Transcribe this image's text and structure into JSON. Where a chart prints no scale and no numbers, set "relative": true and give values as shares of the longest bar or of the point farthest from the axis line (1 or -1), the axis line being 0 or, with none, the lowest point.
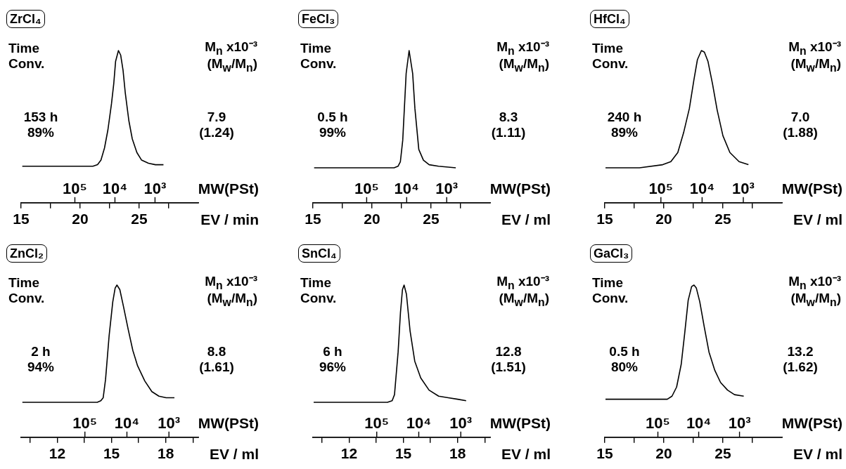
{
  "chart_data": [
    {
      "type": "line",
      "title": "ZrCl₄",
      "xlabel": "EV / min",
      "x2label": "MW(PSt)",
      "xlim": [
        15,
        30
      ],
      "xticks": [
        15,
        {
          "value": 17.5,
          "label": null
        },
        20,
        {
          "value": 22.5,
          "label": null
        },
        25,
        {
          "value": 27.5,
          "label": null
        }
      ],
      "log": "x2",
      "x2lim": [
        2200000,
        83
      ],
      "x2ticks": [
        {
          "value": 100000,
          "label": "10⁵"
        },
        {
          "value": 10000,
          "label": "10⁴"
        },
        {
          "value": 1000,
          "label": "10³"
        }
      ],
      "relative": true,
      "marker": "none",
      "color": "#000000",
      "x": [
        15.1,
        21.08,
        21.47,
        21.76,
        22.06,
        22.35,
        22.65,
        22.84,
        23.0,
        23.24,
        23.43,
        23.63,
        23.82,
        24.12,
        24.41,
        24.8,
        25.2,
        25.78,
        26.37,
        27.05
      ],
      "values": [
        0.24,
        0.24,
        0.25,
        0.28,
        0.36,
        0.48,
        0.65,
        0.78,
        0.93,
        1,
        0.97,
        0.87,
        0.72,
        0.54,
        0.42,
        0.33,
        0.28,
        0.26,
        0.25,
        0.25
      ],
      "annotations": [
        "Time",
        "Conv.",
        "153 h",
        "89%",
        "M$_{n}$ x10⁻³",
        "(M$_{w}$/M$_{n}$)",
        "7.9",
        "(1.24)"
      ]
    },
    {
      "type": "line",
      "title": "FeCl₃",
      "xlabel": "EV / ml",
      "x2label": "MW(PSt)",
      "xlim": [
        15,
        30
      ],
      "xticks": [
        15,
        {
          "value": 17.5,
          "label": null
        },
        20,
        {
          "value": 22.5,
          "label": null
        },
        25,
        {
          "value": 27.5,
          "label": null
        }
      ],
      "log": "x2",
      "x2lim": [
        2200000,
        82
      ],
      "x2ticks": [
        {
          "value": 100000,
          "label": "10⁵"
        },
        {
          "value": 10000,
          "label": "10⁴"
        },
        {
          "value": 1000,
          "label": "10³"
        }
      ],
      "relative": true,
      "marker": "none",
      "color": "#000000",
      "x": [
        15.1,
        21.87,
        22.2,
        22.4,
        22.6,
        22.89,
        23.14,
        23.44,
        23.63,
        23.96,
        24.35,
        24.84,
        25.63,
        27.09
      ],
      "values": [
        0.23,
        0.23,
        0.24,
        0.27,
        0.41,
        0.85,
        1,
        0.85,
        0.62,
        0.35,
        0.28,
        0.25,
        0.24,
        0.23
      ],
      "annotations": [
        "Time",
        "Conv.",
        "0.5 h",
        "99%",
        "M$_{n}$ x10⁻³",
        "(M$_{w}$/M$_{n}$)",
        "8.3",
        "(1.11)"
      ]
    },
    {
      "type": "line",
      "title": "HfCl₄",
      "xlabel": "EV / ml",
      "x2label": "MW(PSt)",
      "xlim": [
        15,
        30
      ],
      "xticks": [
        15,
        {
          "value": 17.5,
          "label": null
        },
        20,
        {
          "value": 22.5,
          "label": null
        },
        25,
        {
          "value": 27.5,
          "label": null
        }
      ],
      "log": "x2",
      "x2lim": [
        2300000,
        115
      ],
      "x2ticks": [
        {
          "value": 100000,
          "label": "10⁵"
        },
        {
          "value": 10000,
          "label": "10⁴"
        },
        {
          "value": 1000,
          "label": "10³"
        }
      ],
      "relative": true,
      "marker": "none",
      "color": "#000000",
      "x": [
        15.06,
        17.94,
        19.9,
        20.59,
        21.18,
        21.67,
        22.16,
        22.55,
        22.84,
        23.18,
        23.43,
        23.73,
        24.12,
        24.51,
        25.0,
        25.59,
        26.37,
        27.16
      ],
      "values": [
        0.23,
        0.23,
        0.25,
        0.27,
        0.33,
        0.46,
        0.62,
        0.81,
        0.94,
        1,
        0.99,
        0.93,
        0.78,
        0.61,
        0.44,
        0.33,
        0.27,
        0.25
      ],
      "annotations": [
        "Time",
        "Conv.",
        "240 h",
        "89%",
        "M$_{n}$ x10⁻³",
        "(M$_{w}$/M$_{n}$)",
        "7.0",
        "(1.88)"
      ]
    },
    {
      "type": "line",
      "title": "ZnCl₂",
      "xlabel": "EV / ml",
      "x2label": "MW(PSt)",
      "xlim": [
        10,
        19.8
      ],
      "xticks": [
        {
          "value": 10.5,
          "label": null
        },
        12,
        {
          "value": 13.5,
          "label": null
        },
        15,
        {
          "value": 16.5,
          "label": null
        },
        18,
        {
          "value": 19.5,
          "label": null
        }
      ],
      "log": "x2",
      "x2lim": [
        3300000,
        200
      ],
      "x2ticks": [
        {
          "value": 100000,
          "label": "10⁵"
        },
        {
          "value": 10000,
          "label": "10⁴"
        },
        {
          "value": 1000,
          "label": "10³"
        }
      ],
      "relative": true,
      "marker": "none",
      "color": "#000000",
      "x": [
        10.07,
        14.21,
        14.41,
        14.54,
        14.67,
        14.87,
        15.07,
        15.2,
        15.3,
        15.46,
        15.66,
        15.92,
        16.18,
        16.44,
        16.84,
        17.23,
        17.62,
        18.02,
        18.48
      ],
      "values": [
        0.23,
        0.23,
        0.24,
        0.26,
        0.38,
        0.67,
        0.89,
        0.98,
        1,
        0.97,
        0.86,
        0.71,
        0.57,
        0.47,
        0.37,
        0.3,
        0.27,
        0.26,
        0.26
      ],
      "annotations": [
        "Time",
        "Conv.",
        "2 h",
        "94%",
        "M$_{n}$ x10⁻³",
        "(M$_{w}$/M$_{n}$)",
        "8.8",
        "(1.61)"
      ]
    },
    {
      "type": "line",
      "title": "SnCl₄",
      "xlabel": "EV / ml",
      "x2label": "MW(PSt)",
      "xlim": [
        10,
        19.8
      ],
      "xticks": [
        {
          "value": 10.5,
          "label": null
        },
        12,
        {
          "value": 13.5,
          "label": null
        },
        15,
        {
          "value": 16.5,
          "label": null
        },
        18,
        {
          "value": 19.5,
          "label": null
        }
      ],
      "log": "x2",
      "x2lim": [
        3300000,
        200
      ],
      "x2ticks": [
        {
          "value": 100000,
          "label": "10⁵"
        },
        {
          "value": 10000,
          "label": "10⁴"
        },
        {
          "value": 1000,
          "label": "10³"
        }
      ],
      "relative": true,
      "marker": "none",
      "color": "#000000",
      "x": [
        10.04,
        14.12,
        14.38,
        14.51,
        14.71,
        14.84,
        14.95,
        15.04,
        15.17,
        15.37,
        15.63,
        15.96,
        16.42,
        16.95,
        17.48,
        18.0,
        18.47
      ],
      "values": [
        0.23,
        0.23,
        0.24,
        0.28,
        0.56,
        0.82,
        0.97,
        1,
        0.94,
        0.7,
        0.5,
        0.39,
        0.31,
        0.27,
        0.26,
        0.25,
        0.24
      ],
      "annotations": [
        "Time",
        "Conv.",
        "6 h",
        "96%",
        "M$_{n}$ x10⁻³",
        "(M$_{w}$/M$_{n}$)",
        "12.8",
        "(1.51)"
      ]
    },
    {
      "type": "line",
      "title": "GaCl₃",
      "xlabel": "EV / ml",
      "x2label": "MW(PSt)",
      "xlim": [
        15,
        30
      ],
      "xticks": [
        15,
        {
          "value": 17.5,
          "label": null
        },
        20,
        {
          "value": 22.5,
          "label": null
        },
        25,
        {
          "value": 27.5,
          "label": null
        }
      ],
      "log": "x2",
      "x2lim": [
        2000000,
        91
      ],
      "x2ticks": [
        {
          "value": 100000,
          "label": "10⁵"
        },
        {
          "value": 10000,
          "label": "10⁴"
        },
        {
          "value": 1000,
          "label": "10³"
        }
      ],
      "relative": true,
      "marker": "none",
      "color": "#000000",
      "x": [
        15.06,
        20.29,
        20.69,
        21.08,
        21.47,
        21.76,
        22.06,
        22.35,
        22.55,
        22.75,
        23.04,
        23.43,
        23.82,
        24.31,
        24.8,
        25.39,
        25.98,
        26.76
      ],
      "values": [
        0.25,
        0.25,
        0.27,
        0.33,
        0.48,
        0.68,
        0.9,
        0.99,
        1,
        0.98,
        0.89,
        0.72,
        0.56,
        0.44,
        0.36,
        0.31,
        0.28,
        0.27
      ],
      "annotations": [
        "Time",
        "Conv.",
        "0.5 h",
        "80%",
        "M$_{n}$ x10⁻³",
        "(M$_{w}$/M$_{n}$)",
        "13.2",
        "(1.62)"
      ]
    }
  ]
}
